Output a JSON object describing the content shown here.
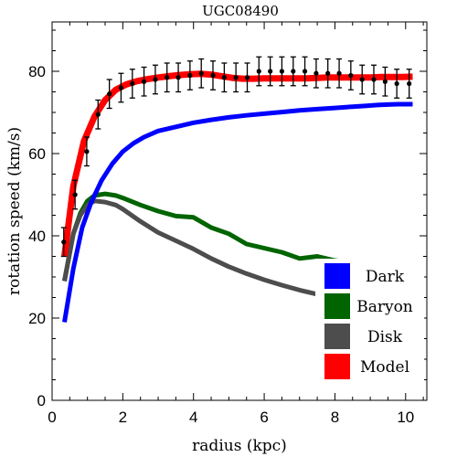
{
  "chart_data": {
    "type": "line",
    "title": "UGC08490",
    "xlabel": "radius (kpc)",
    "ylabel": "rotation speed (km/s)",
    "xlim": [
      0,
      10.6
    ],
    "ylim": [
      0,
      92
    ],
    "x_ticks": [
      0,
      2,
      4,
      6,
      8,
      10
    ],
    "y_ticks": [
      0,
      20,
      40,
      60,
      80
    ],
    "grid": false,
    "legend_position": "bottom-right",
    "series": [
      {
        "name": "Dark",
        "color": "#0000ff",
        "x": [
          0.35,
          0.6,
          0.85,
          1.1,
          1.4,
          1.7,
          2.0,
          2.3,
          2.6,
          3.0,
          3.5,
          4.0,
          4.5,
          5.0,
          5.5,
          6.0,
          6.5,
          7.0,
          7.5,
          8.0,
          8.5,
          8.9,
          9.2,
          9.5,
          9.8,
          10.2
        ],
        "y": [
          19,
          32,
          42,
          48,
          53.5,
          57.5,
          60.5,
          62.5,
          64,
          65.5,
          66.5,
          67.5,
          68.2,
          68.8,
          69.3,
          69.7,
          70.1,
          70.5,
          70.8,
          71.1,
          71.4,
          71.6,
          71.8,
          71.9,
          72.0,
          72.0
        ]
      },
      {
        "name": "Baryon",
        "color": "#006400",
        "x": [
          0.35,
          0.6,
          0.8,
          1.0,
          1.2,
          1.5,
          1.8,
          2.0,
          2.5,
          3.0,
          3.5,
          4.0,
          4.5,
          5.0,
          5.5,
          6.0,
          6.5,
          7.0,
          7.5,
          8.0,
          8.5,
          9.0,
          9.5,
          10.2
        ],
        "y": [
          29,
          40.5,
          45.5,
          48.5,
          49.8,
          50.2,
          49.8,
          49.2,
          47.5,
          46,
          44.8,
          44.5,
          42,
          40.5,
          38,
          37,
          36,
          34.5,
          35,
          34,
          33.5,
          32.5,
          31.5,
          31.5
        ]
      },
      {
        "name": "Disk",
        "color": "#4d4d4d",
        "x": [
          0.35,
          0.6,
          0.8,
          1.0,
          1.2,
          1.5,
          1.8,
          2.0,
          2.5,
          3.0,
          3.5,
          4.0,
          4.5,
          5.0,
          5.5,
          6.0,
          6.5,
          7.0,
          7.5,
          8.0,
          8.5,
          9.0,
          9.5,
          10.2
        ],
        "y": [
          29,
          40.5,
          45,
          47.5,
          48.5,
          48.2,
          47.5,
          46.5,
          43.5,
          40.8,
          38.8,
          36.8,
          34.5,
          32.5,
          30.8,
          29.3,
          28.0,
          26.8,
          25.8,
          25.0,
          24.2,
          23.5,
          22.8,
          22.0
        ]
      },
      {
        "name": "Model",
        "color": "#ff0000",
        "x": [
          0.35,
          0.6,
          0.9,
          1.2,
          1.5,
          1.8,
          2.1,
          2.4,
          2.7,
          3.0,
          3.3,
          3.6,
          3.9,
          4.2,
          4.5,
          4.8,
          5.1,
          5.4,
          5.7,
          6.0,
          6.3,
          6.6,
          6.9,
          7.2,
          7.5,
          7.8,
          8.1,
          8.4,
          8.7,
          9.0,
          9.3,
          9.6,
          9.9,
          10.2
        ],
        "y": [
          35,
          52,
          63,
          69,
          73,
          75.5,
          76.8,
          77.6,
          78.1,
          78.5,
          78.8,
          79.1,
          79.3,
          79.4,
          79.2,
          78.8,
          78.4,
          78.2,
          78.2,
          78.3,
          78.3,
          78.3,
          78.3,
          78.3,
          78.4,
          78.5,
          78.5,
          78.5,
          78.5,
          78.5,
          78.6,
          78.6,
          78.6,
          78.7
        ]
      }
    ],
    "observations": {
      "name": "data",
      "color": "#000000",
      "x": [
        0.33,
        0.65,
        0.98,
        1.3,
        1.62,
        1.95,
        2.27,
        2.6,
        2.92,
        3.25,
        3.57,
        3.9,
        4.22,
        4.55,
        4.87,
        5.2,
        5.52,
        5.85,
        6.17,
        6.5,
        6.82,
        7.15,
        7.47,
        7.8,
        8.12,
        8.45,
        8.77,
        9.1,
        9.42,
        9.75,
        10.1
      ],
      "y": [
        38.5,
        50,
        60.5,
        69.5,
        74.5,
        76,
        77,
        77.5,
        78,
        78.5,
        78.5,
        79,
        79.5,
        79,
        78.5,
        78.5,
        78.5,
        80,
        80,
        80,
        80,
        80,
        79.5,
        79.5,
        79.5,
        79,
        78,
        78,
        77.5,
        77,
        77
      ],
      "err": [
        3.5,
        3.5,
        3.5,
        3.5,
        3.5,
        3.5,
        3.5,
        3.5,
        3.5,
        3.5,
        3.5,
        3.5,
        3.5,
        3.5,
        3.5,
        3.5,
        3.5,
        3.5,
        3.5,
        3.5,
        3.5,
        3.5,
        3.5,
        3.5,
        3.5,
        3.5,
        3.5,
        3.5,
        3.5,
        3.5,
        3.5
      ]
    }
  }
}
